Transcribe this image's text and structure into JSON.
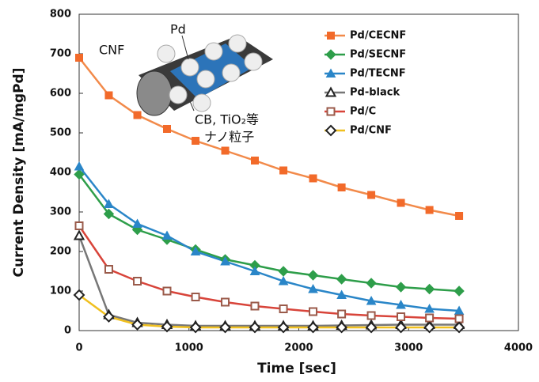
{
  "chart_data": {
    "type": "line",
    "x_label": "Time [sec]",
    "y_label": "Current Density [mA/mgPd]",
    "x": [
      0,
      270,
      530,
      800,
      1060,
      1330,
      1600,
      1860,
      2130,
      2390,
      2660,
      2930,
      3190,
      3460
    ],
    "xlim": [
      0,
      4000
    ],
    "xticks": [
      0,
      1000,
      2000,
      3000,
      4000
    ],
    "ylim": [
      0,
      800
    ],
    "yticks": [
      0,
      100,
      200,
      300,
      400,
      500,
      600,
      700,
      800
    ],
    "series": [
      {
        "name": "Pd/CECNF",
        "color": "#f28a4a",
        "marker": "square",
        "marker_color": "#f26a2a",
        "values": [
          690,
          595,
          545,
          510,
          480,
          455,
          430,
          405,
          385,
          362,
          343,
          323,
          305,
          290
        ]
      },
      {
        "name": "Pd/SECNF",
        "color": "#2e9e4a",
        "marker": "diamond",
        "marker_color": "#2e9e4a",
        "values": [
          395,
          295,
          255,
          230,
          205,
          180,
          165,
          150,
          140,
          130,
          120,
          110,
          105,
          100
        ]
      },
      {
        "name": "Pd/TECNF",
        "color": "#2a86c8",
        "marker": "triangle",
        "marker_color": "#2a86c8",
        "values": [
          415,
          320,
          270,
          240,
          200,
          175,
          150,
          125,
          105,
          90,
          75,
          65,
          55,
          50
        ]
      },
      {
        "name": "Pd-black",
        "color": "#777777",
        "marker": "triangle-open",
        "marker_color": "#222222",
        "values": [
          240,
          40,
          20,
          15,
          12,
          12,
          12,
          12,
          12,
          13,
          14,
          15,
          15,
          15
        ]
      },
      {
        "name": "Pd/C",
        "color": "#d8443a",
        "marker": "square-open",
        "marker_color": "#9a5a4a",
        "values": [
          265,
          155,
          125,
          100,
          85,
          72,
          62,
          55,
          48,
          42,
          38,
          35,
          32,
          30
        ]
      },
      {
        "name": "Pd/CNF",
        "color": "#f0c020",
        "marker": "diamond-open",
        "marker_color": "#222222",
        "values": [
          90,
          35,
          15,
          10,
          8,
          8,
          8,
          8,
          8,
          8,
          8,
          8,
          8,
          8
        ]
      }
    ],
    "inset": {
      "labels": [
        "CNF",
        "Pd",
        "CB, TiO₂等",
        "ナノ粒子"
      ]
    }
  }
}
